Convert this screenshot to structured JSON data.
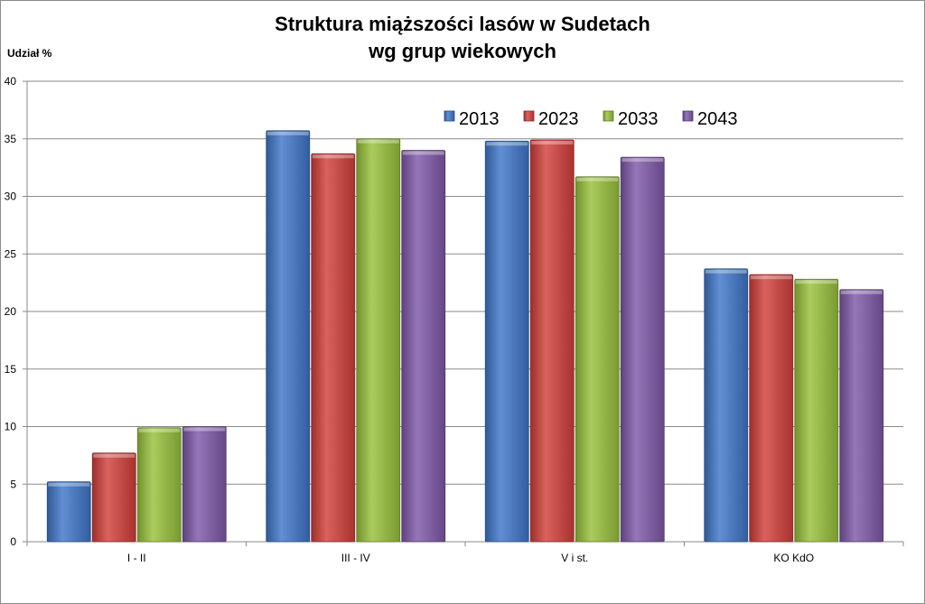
{
  "chart_data": {
    "type": "bar",
    "title_line1": "Struktura miąższości lasów w Sudetach",
    "title_line2": "wg grup wiekowych",
    "ylabel": "Udział %",
    "xlabel": "",
    "ylim": [
      0,
      40
    ],
    "yticks": [
      0,
      5,
      10,
      15,
      20,
      25,
      30,
      35,
      40
    ],
    "grid": true,
    "legend_position": "top-right",
    "categories": [
      "I - II",
      "III - IV",
      "V i st.",
      "KO KdO"
    ],
    "series": [
      {
        "name": "2013",
        "color": "#3f76c9",
        "values": [
          5.2,
          35.7,
          34.8,
          23.7
        ]
      },
      {
        "name": "2023",
        "color": "#d23f3b",
        "values": [
          7.7,
          33.7,
          34.9,
          23.2
        ]
      },
      {
        "name": "2033",
        "color": "#97c13b",
        "values": [
          9.9,
          35.0,
          31.7,
          22.8
        ]
      },
      {
        "name": "2043",
        "color": "#7e58a8",
        "values": [
          10.0,
          34.0,
          33.4,
          21.9
        ]
      }
    ]
  }
}
